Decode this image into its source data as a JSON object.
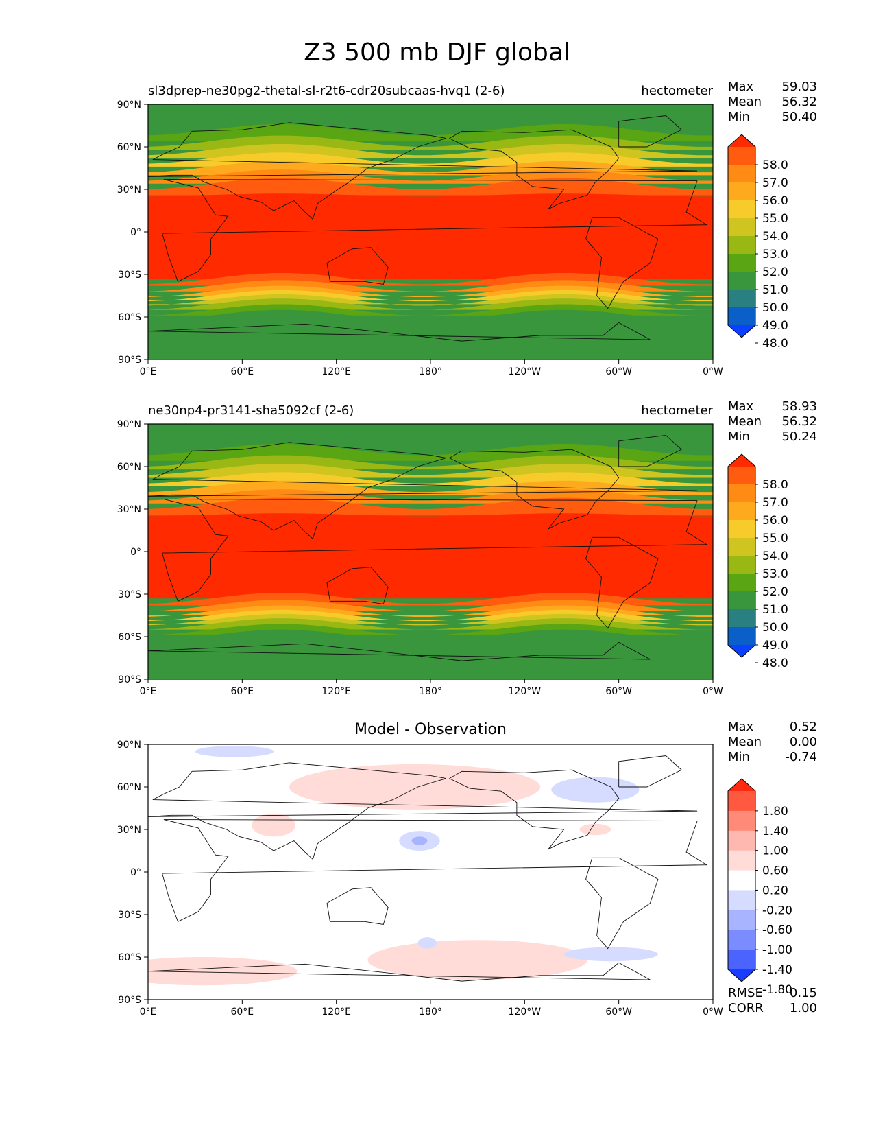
{
  "title": "Z3 500 mb DJF global",
  "x_ticks": [
    "0°E",
    "60°E",
    "120°E",
    "180°",
    "120°W",
    "60°W",
    "0°W"
  ],
  "y_ticks": [
    "90°N",
    "60°N",
    "30°N",
    "0°",
    "30°S",
    "60°S",
    "90°S"
  ],
  "panels": [
    {
      "title_left": "sl3dprep-ne30pg2-thetal-sl-r2t6-cdr20subcaas-hvq1 (2-6)",
      "title_right": "hectometer",
      "title_center": "",
      "stats": [
        {
          "label": "Max",
          "value": "59.03"
        },
        {
          "label": "Mean",
          "value": "56.32"
        },
        {
          "label": "Min",
          "value": "50.40"
        }
      ],
      "colorbar": {
        "labels": [
          "58.0",
          "57.0",
          "56.0",
          "55.0",
          "54.0",
          "53.0",
          "52.0",
          "51.0",
          "50.0",
          "49.0",
          "48.0"
        ],
        "colors": [
          "#ff2a00",
          "#ff5c10",
          "#ff8a14",
          "#ffaa1e",
          "#f7cc2a",
          "#cfc420",
          "#99b814",
          "#5aa514",
          "#3a963c",
          "#2a8080",
          "#0a60c8",
          "#0a40ff"
        ]
      }
    },
    {
      "title_left": "ne30np4-pr3141-sha5092cf (2-6)",
      "title_right": "hectometer",
      "title_center": "",
      "stats": [
        {
          "label": "Max",
          "value": "58.93"
        },
        {
          "label": "Mean",
          "value": "56.32"
        },
        {
          "label": "Min",
          "value": "50.24"
        }
      ],
      "colorbar": {
        "labels": [
          "58.0",
          "57.0",
          "56.0",
          "55.0",
          "54.0",
          "53.0",
          "52.0",
          "51.0",
          "50.0",
          "49.0",
          "48.0"
        ],
        "colors": [
          "#ff2a00",
          "#ff5c10",
          "#ff8a14",
          "#ffaa1e",
          "#f7cc2a",
          "#cfc420",
          "#99b814",
          "#5aa514",
          "#3a963c",
          "#2a8080",
          "#0a60c8",
          "#0a40ff"
        ]
      }
    },
    {
      "title_left": "",
      "title_right": "",
      "title_center": "Model - Observation",
      "stats": [
        {
          "label": "Max",
          "value": "0.52"
        },
        {
          "label": "Mean",
          "value": "0.00"
        },
        {
          "label": "Min",
          "value": "-0.74"
        }
      ],
      "colorbar": {
        "labels": [
          "1.80",
          "1.40",
          "1.00",
          "0.60",
          "0.20",
          "-0.20",
          "-0.60",
          "-1.00",
          "-1.40",
          "-1.80"
        ],
        "colors": [
          "#ff2a10",
          "#ff5a40",
          "#ff8a78",
          "#ffb8b0",
          "#ffdcd8",
          "#ffffff",
          "#d6dcff",
          "#a8b4ff",
          "#7a8cff",
          "#4c64ff",
          "#1a3cff"
        ]
      },
      "extra_stats": [
        {
          "label": "RMSE",
          "value": "0.15"
        },
        {
          "label": "CORR",
          "value": "1.00"
        }
      ]
    }
  ]
}
